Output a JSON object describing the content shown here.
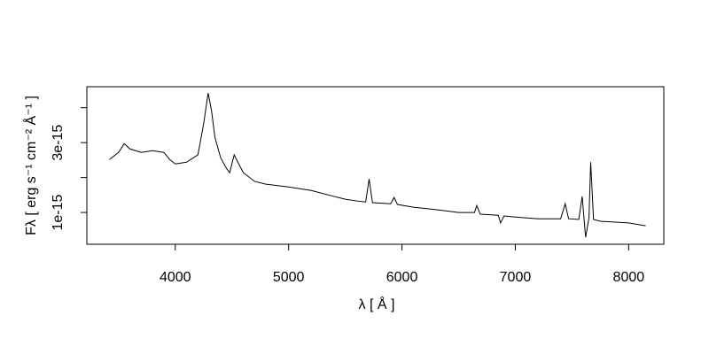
{
  "chart_data": {
    "type": "line",
    "x_label": "λ [ Å ]",
    "y_label": "Fλ [ erg s⁻¹ cm⁻² Å⁻¹ ]",
    "xlim": [
      3220,
      8310
    ],
    "ylim": [
      9e-17,
      4.6e-15
    ],
    "xticks": [
      4000,
      5000,
      6000,
      7000,
      8000
    ],
    "yticks": [
      {
        "value": 1e-15,
        "label": "1e-15"
      },
      2e-15,
      {
        "value": 3e-15,
        "label": "3e-15"
      },
      4e-15
    ],
    "series": [
      {
        "color": "#000000",
        "x": [
          3420,
          3500,
          3550,
          3600,
          3700,
          3800,
          3900,
          3950,
          4000,
          4100,
          4200,
          4250,
          4290,
          4320,
          4350,
          4400,
          4450,
          4480,
          4520,
          4560,
          4600,
          4700,
          4800,
          5000,
          5200,
          5400,
          5500,
          5600,
          5680,
          5710,
          5740,
          5900,
          5930,
          5960,
          6100,
          6300,
          6500,
          6640,
          6660,
          6690,
          6850,
          6870,
          6900,
          7000,
          7200,
          7400,
          7440,
          7470,
          7560,
          7590,
          7620,
          7650,
          7665,
          7690,
          7750,
          8000,
          8150
        ],
        "values": [
          2.52e-15,
          2.72e-15,
          2.97e-15,
          2.82e-15,
          2.72e-15,
          2.77e-15,
          2.72e-15,
          2.52e-15,
          2.39e-15,
          2.44e-15,
          2.65e-15,
          3.53e-15,
          4.42e-15,
          3.91e-15,
          3.15e-15,
          2.57e-15,
          2.27e-15,
          2.14e-15,
          2.65e-15,
          2.39e-15,
          2.14e-15,
          1.89e-15,
          1.81e-15,
          1.73e-15,
          1.63e-15,
          1.46e-15,
          1.38e-15,
          1.33e-15,
          1.3e-15,
          1.96e-15,
          1.28e-15,
          1.25e-15,
          1.43e-15,
          1.23e-15,
          1.15e-15,
          1.08e-15,
          1e-15,
          1e-15,
          1.2e-15,
          9.5e-16,
          9.2e-16,
          7e-16,
          9e-16,
          8.7e-16,
          8.2e-16,
          8.2e-16,
          1.25e-15,
          8.2e-16,
          8e-16,
          1.46e-15,
          2.9e-16,
          8.5e-16,
          2.44e-15,
          8e-16,
          7.5e-16,
          7e-16,
          6.2e-16
        ]
      }
    ]
  }
}
